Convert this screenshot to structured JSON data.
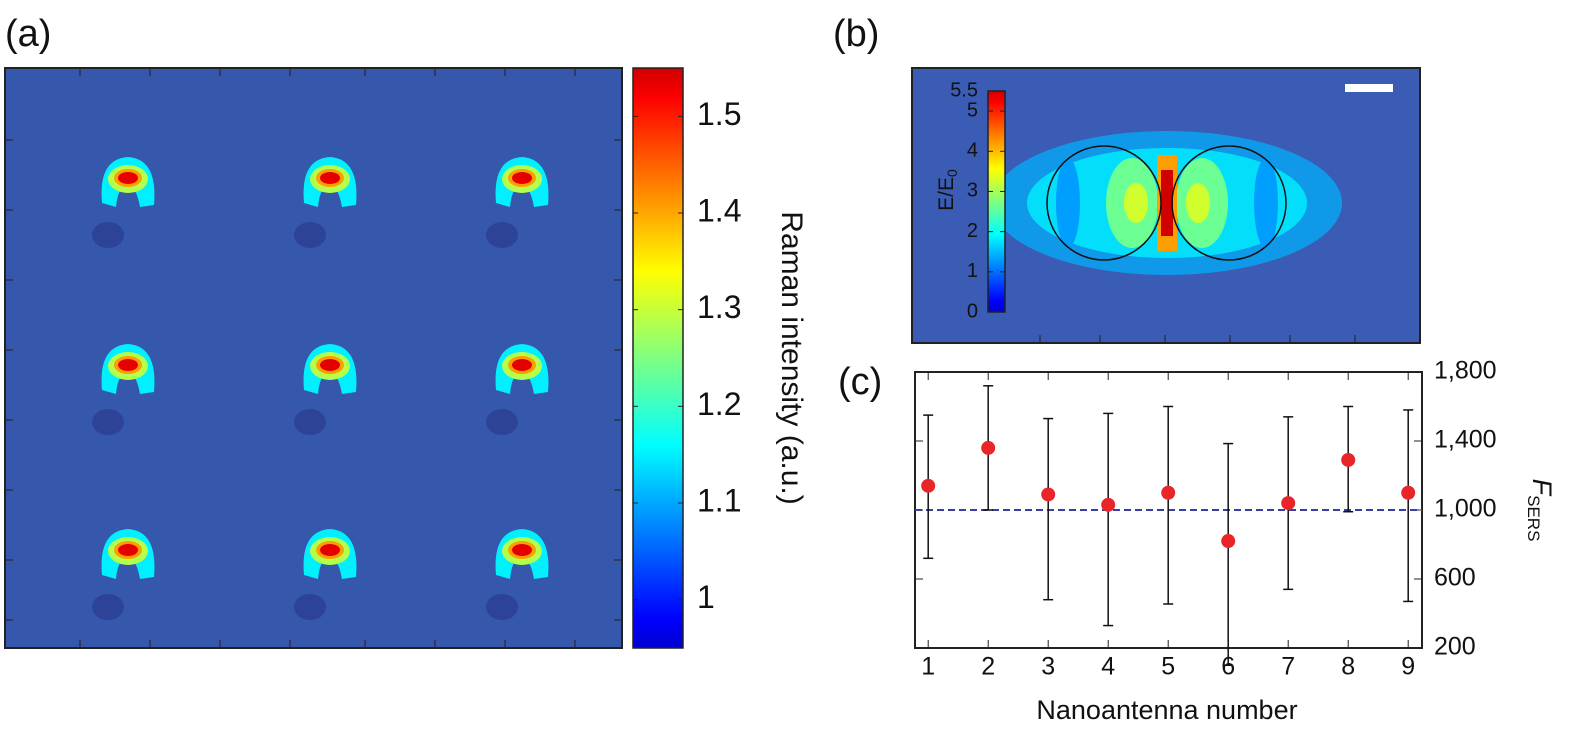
{
  "chart_data": [
    {
      "type": "heatmap",
      "panel_label": "(a)",
      "colorbar_label": "Raman intensity (a.u.)",
      "colormap": "jet",
      "clim": [
        0.95,
        1.55
      ],
      "cticks": [
        1,
        1.1,
        1.2,
        1.3,
        1.4,
        1.5
      ]
    },
    {
      "type": "field_map",
      "panel_label": "(b)",
      "colorbar_label": {
        "text": "E/E",
        "sub": "0"
      },
      "colormap": "jet",
      "clim": [
        0,
        5.5
      ],
      "cticks": [
        0,
        1,
        2,
        3,
        4,
        5,
        5.5
      ]
    },
    {
      "type": "scatter",
      "panel_label": "(c)",
      "xlabel": "Nanoantenna number",
      "ylabel": {
        "text": "F",
        "sub": "SERS"
      },
      "x": [
        1,
        2,
        3,
        4,
        5,
        6,
        7,
        8,
        9
      ],
      "values": [
        1140,
        1360,
        1090,
        1030,
        1100,
        820,
        1040,
        1290,
        1100
      ],
      "err_low": [
        420,
        360,
        610,
        700,
        645,
        720,
        500,
        300,
        630
      ],
      "err_high": [
        410,
        360,
        440,
        530,
        500,
        565,
        500,
        310,
        480
      ],
      "color": "#e8262a",
      "reference_line": 1000,
      "reference_color": "#3a3fa8",
      "xlim": [
        0.78,
        9.23
      ],
      "xticks": [
        1,
        2,
        3,
        4,
        5,
        6,
        7,
        8,
        9
      ],
      "ylim": [
        200,
        1800
      ],
      "y_axis_side": "right",
      "yticks": [
        200,
        600,
        {
          "value": 1000,
          "label": "1,000"
        },
        {
          "value": 1400,
          "label": "1,400"
        },
        {
          "value": 1800,
          "label": "1,800"
        }
      ]
    }
  ]
}
